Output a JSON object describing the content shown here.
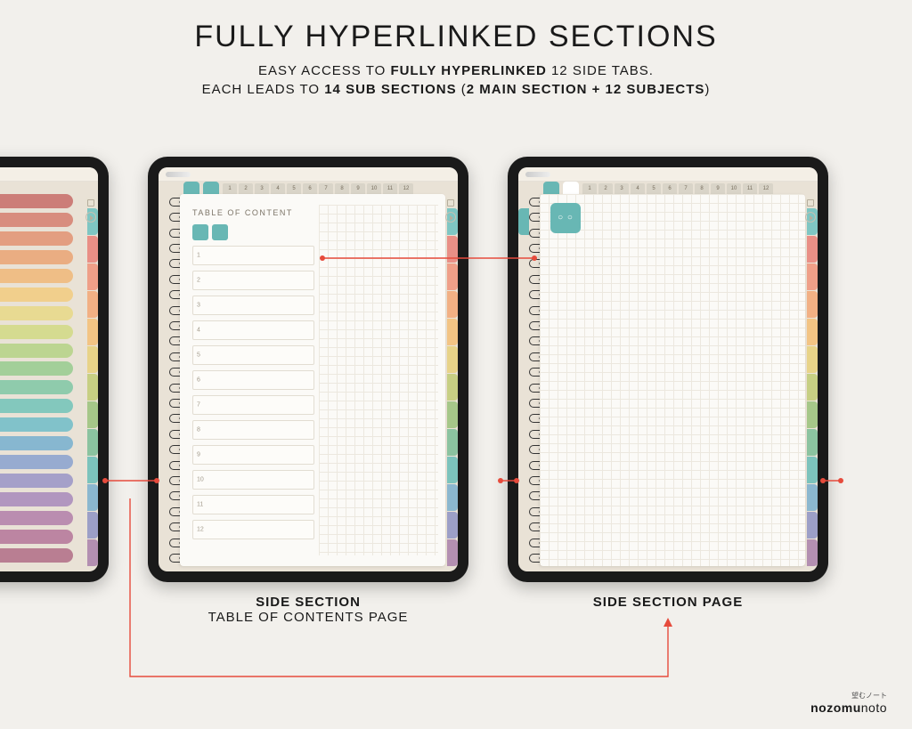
{
  "heading": {
    "title": "FULLY HYPERLINKED SECTIONS",
    "line1_a": "EASY ACCESS TO ",
    "line1_b": "FULLY HYPERLINKED",
    "line1_c": " 12 SIDE TABS.",
    "line2_a": "EACH LEADS TO ",
    "line2_b": "14 SUB SECTIONS",
    "line2_c": " (",
    "line2_d": "2 MAIN SECTION + 12 SUBJECTS",
    "line2_e": ")"
  },
  "captions": {
    "mid_bold": "SIDE SECTION",
    "mid_sub": "TABLE OF CONTENTS PAGE",
    "right_bold": "SIDE SECTION PAGE"
  },
  "toc_title": "TABLE OF CONTENT",
  "toc_numbers": [
    "1",
    "2",
    "3",
    "4",
    "5",
    "6",
    "7",
    "8",
    "9",
    "10",
    "11",
    "12"
  ],
  "top_tab_numbers": [
    "1",
    "2",
    "3",
    "4",
    "5",
    "6",
    "7",
    "8",
    "9",
    "10",
    "11",
    "12"
  ],
  "colors": {
    "accent_teal": "#68b7b4",
    "accent_teal_dark": "#4ea6a3",
    "line": "#e64b3c",
    "side_tabs": [
      "#7fc6c3",
      "#e98f86",
      "#ef9f88",
      "#f2b084",
      "#f3c484",
      "#e8d388",
      "#c7cf83",
      "#a6c789",
      "#8bc3a0",
      "#7cc3bc",
      "#8bb7cf",
      "#9c9fc7",
      "#b38fb1"
    ],
    "bars": [
      "#c97470",
      "#d68576",
      "#e2987a",
      "#e9a87b",
      "#efbb7f",
      "#f1cd85",
      "#e7d98c",
      "#d2da8a",
      "#b7d48b",
      "#9ccd94",
      "#87c9a8",
      "#7ac5bb",
      "#77bfc9",
      "#7eb3cf",
      "#8fa6cf",
      "#9e9ac8",
      "#ab8fbd",
      "#b585ad",
      "#b77d9d",
      "#b4758c"
    ]
  },
  "brand": {
    "jp": "望むノート",
    "name_a": "nozomu",
    "name_b": "noto"
  },
  "n_rings": 24
}
